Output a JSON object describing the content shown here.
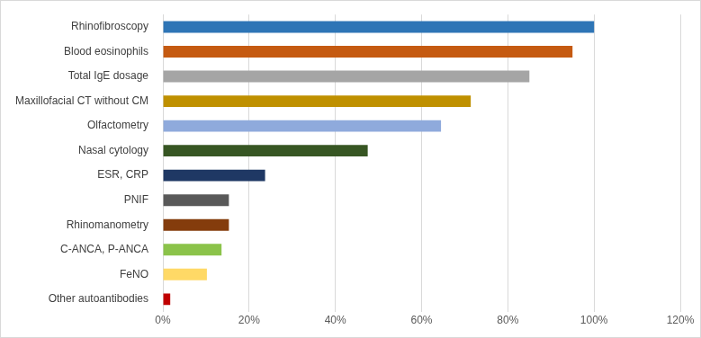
{
  "chart_data": {
    "type": "bar",
    "orientation": "horizontal",
    "categories": [
      "Rhinofibroscopy",
      "Blood eosinophils",
      "Total IgE dosage",
      "Maxillofacial CT without CM",
      "Olfactometry",
      "Nasal cytology",
      "ESR, CRP",
      "PNIF",
      "Rhinomanometry",
      "C-ANCA, P-ANCA",
      "FeNO",
      "Other autoantibodies"
    ],
    "values": [
      100,
      95,
      85,
      71.4,
      64.5,
      47.5,
      23.7,
      15.3,
      15.3,
      13.6,
      10.2,
      1.7
    ],
    "colors": [
      "#2e75b6",
      "#c55a11",
      "#a5a5a5",
      "#bf9000",
      "#8faadc",
      "#375623",
      "#1f3864",
      "#595959",
      "#843c0c",
      "#8bc34a",
      "#ffd966",
      "#c00000"
    ],
    "xlim": [
      0,
      120
    ],
    "xticks": [
      {
        "value": 0,
        "label": "0%"
      },
      {
        "value": 20,
        "label": "20%"
      },
      {
        "value": 40,
        "label": "40%"
      },
      {
        "value": 60,
        "label": "60%"
      },
      {
        "value": 80,
        "label": "80%"
      },
      {
        "value": 100,
        "label": "100%"
      },
      {
        "value": 120,
        "label": "120%"
      }
    ],
    "grid": true
  }
}
